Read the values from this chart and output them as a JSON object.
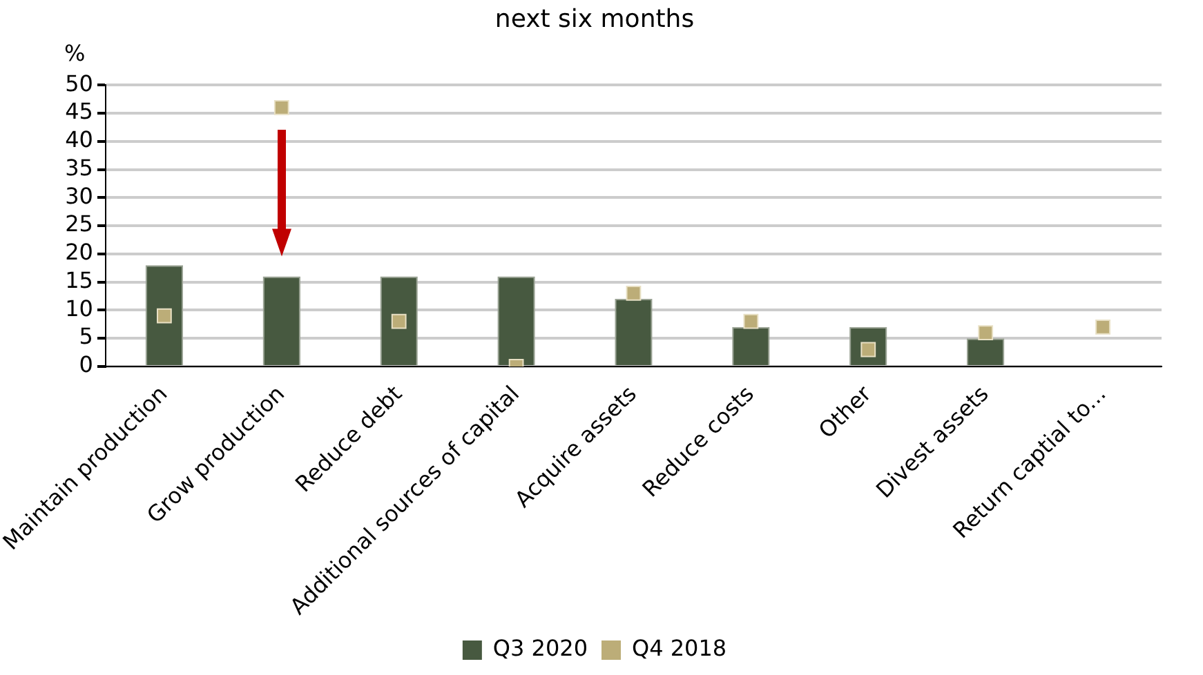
{
  "chart_data": {
    "type": "bar",
    "title": "next six months",
    "ylabel": "%",
    "categories": [
      "Maintain production",
      "Grow production",
      "Reduce debt",
      "Additional sources of capital",
      "Acquire assets",
      "Reduce costs",
      "Other",
      "Divest assets",
      "Return captial to..."
    ],
    "series": [
      {
        "name": "Q3 2020",
        "color": "#475940",
        "values": [
          18,
          16,
          16,
          16,
          12,
          7,
          7,
          5,
          null
        ]
      },
      {
        "name": "Q4 2018",
        "type": "scatter",
        "color": "#bcad78",
        "marker": "square",
        "x": [
          "Maintain production",
          "Grow production",
          "Reduce debt",
          "Additional sources of capital",
          "Acquire assets",
          "Reduce costs",
          "Other",
          "Divest assets",
          "Return captial to..."
        ],
        "values": [
          9,
          46,
          8,
          0,
          13,
          8,
          3,
          6,
          7
        ]
      }
    ],
    "ylim": [
      0,
      50
    ],
    "yticks": [
      0,
      5,
      10,
      15,
      20,
      25,
      30,
      35,
      40,
      45,
      50
    ],
    "grid": "y",
    "legend": "bottom"
  }
}
